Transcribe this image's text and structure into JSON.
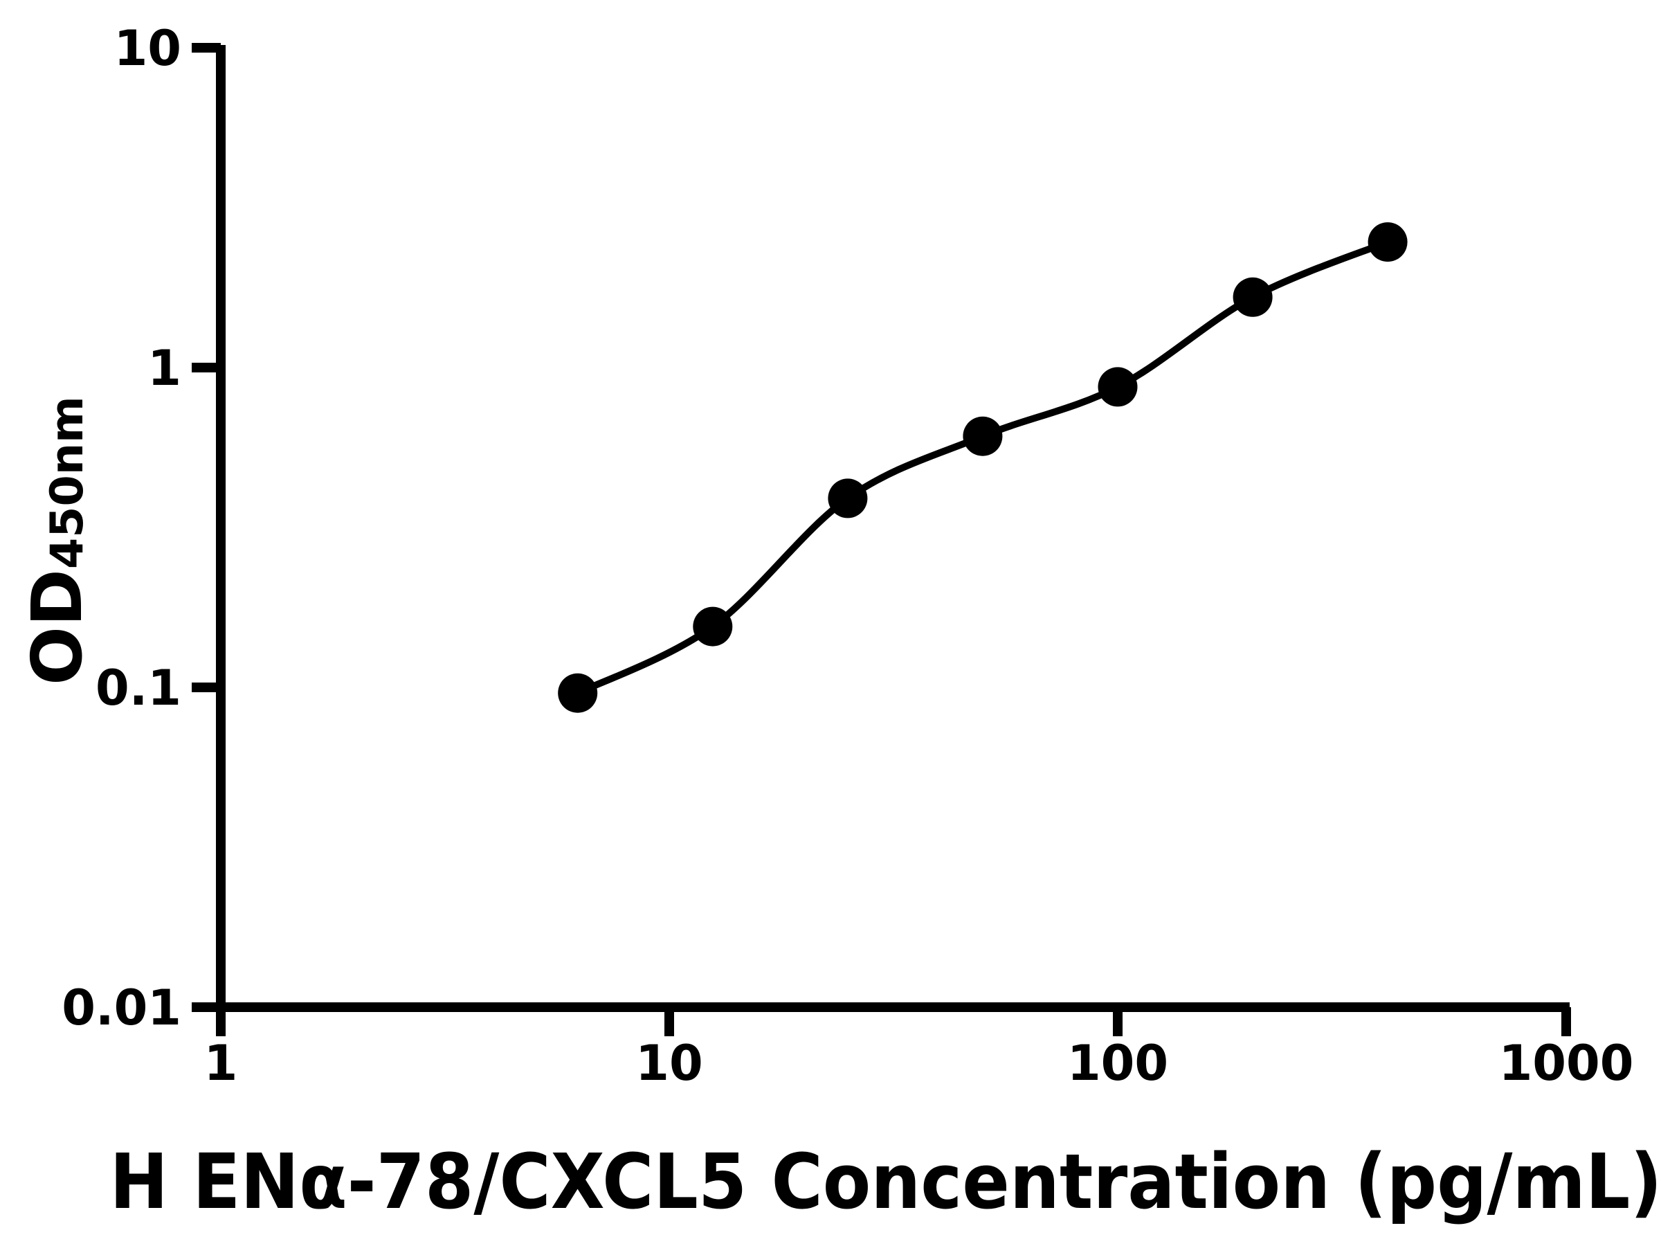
{
  "figure": {
    "background_color": "#ffffff",
    "ink_color": "#000000"
  },
  "chart_data": {
    "type": "scatter",
    "subtype": "elisa-standard-curve",
    "title": "",
    "xlabel": "H ENα-78/CXCL5 Concentration (pg/mL)",
    "ylabel_main": "OD",
    "ylabel_subscript": "450nm",
    "x_scale": "log",
    "y_scale": "log",
    "xlim": [
      1,
      1000
    ],
    "ylim": [
      0.01,
      10
    ],
    "grid": false,
    "legend": null,
    "x_ticks": [
      {
        "value": 1,
        "label": "1"
      },
      {
        "value": 10,
        "label": "10"
      },
      {
        "value": 100,
        "label": "100"
      },
      {
        "value": 1000,
        "label": "1000"
      }
    ],
    "y_ticks": [
      {
        "value": 0.01,
        "label": "0.01"
      },
      {
        "value": 0.1,
        "label": "0.1"
      },
      {
        "value": 1,
        "label": "1"
      },
      {
        "value": 10,
        "label": "10"
      }
    ],
    "series": [
      {
        "name": "standard-curve",
        "marker": "filled-circle",
        "color": "#000000",
        "fit_line": true,
        "points": [
          {
            "x": 6.25,
            "y": 0.096
          },
          {
            "x": 12.5,
            "y": 0.155
          },
          {
            "x": 25,
            "y": 0.39
          },
          {
            "x": 50,
            "y": 0.61
          },
          {
            "x": 100,
            "y": 0.87
          },
          {
            "x": 200,
            "y": 1.66
          },
          {
            "x": 400,
            "y": 2.47
          }
        ]
      }
    ]
  }
}
